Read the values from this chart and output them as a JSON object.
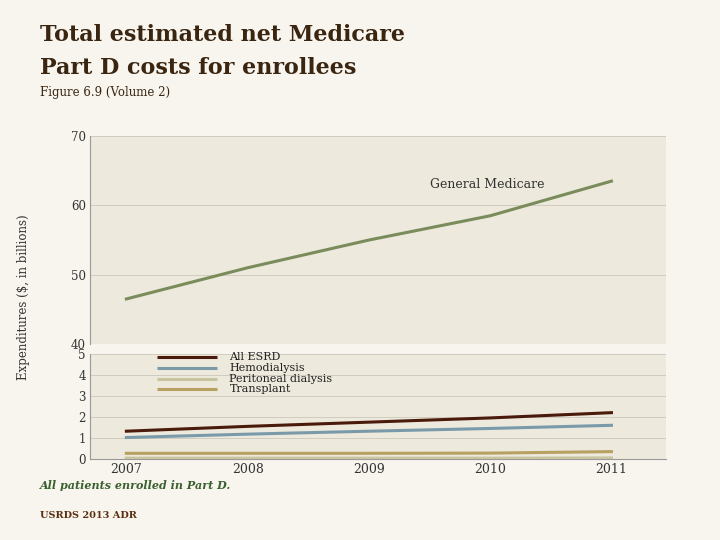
{
  "title_line1": "Total estimated net Medicare",
  "title_line2": "Part D costs for enrollees",
  "subtitle": "Figure 6.9 (Volume 2)",
  "ylabel": "Expenditures ($, in billions)",
  "footnote": "All patients enrolled in Part D.",
  "footer": "USRDS 2013 ADR",
  "years": [
    2007,
    2008,
    2009,
    2010,
    2011
  ],
  "general_medicare": [
    46.5,
    51.0,
    55.0,
    58.5,
    63.5
  ],
  "all_esrd": [
    1.32,
    1.55,
    1.75,
    1.95,
    2.2
  ],
  "hemodialysis": [
    1.02,
    1.18,
    1.32,
    1.45,
    1.6
  ],
  "peritoneal_dialysis": [
    0.04,
    0.04,
    0.04,
    0.04,
    0.05
  ],
  "transplant": [
    0.27,
    0.27,
    0.27,
    0.28,
    0.35
  ],
  "color_general_medicare": "#7a8c5c",
  "color_all_esrd": "#4a1a0a",
  "color_hemodialysis": "#7a9aaa",
  "color_peritoneal_dialysis": "#c8c4a0",
  "color_transplant": "#b8a060",
  "background_color": "#f5f0e8",
  "panel_bg_color": "#f5f2e8",
  "plot_bg_color": "#ede9dc",
  "title_color": "#3a2510",
  "subtitle_color": "#3a2510",
  "footnote_color": "#3a6030",
  "footer_color": "#5a3010",
  "grid_color": "#d0ccc0",
  "axis_color": "#999999",
  "yticks_upper": [
    40,
    50,
    60,
    70
  ],
  "yticks_lower": [
    0,
    1,
    2,
    3,
    4,
    5
  ],
  "annotation_text": "General Medicare",
  "legend_entries": [
    {
      "label": "All ESRD",
      "color": "#4a1a0a"
    },
    {
      "label": "Hemodialysis",
      "color": "#7a9aaa"
    },
    {
      "label": "Peritoneal dialysis",
      "color": "#c8c4a0"
    },
    {
      "label": "Transplant",
      "color": "#b8a060"
    }
  ]
}
